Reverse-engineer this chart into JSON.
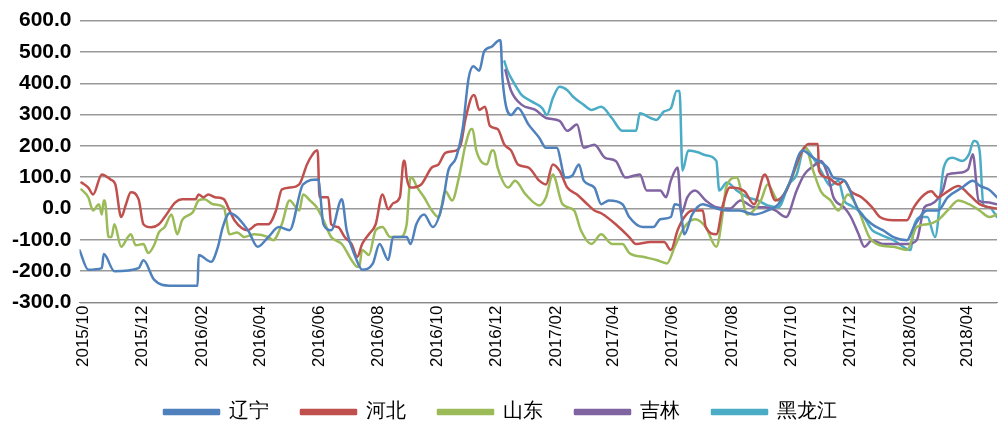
{
  "chart_data": {
    "type": "line",
    "legend": "bottom",
    "grid": "y",
    "marker": "none",
    "line_style": "solid",
    "xlim": [
      "2015-09-27",
      "2018-05-02"
    ],
    "xticks": [
      {
        "value": "2015-10",
        "label": "2015/10"
      },
      {
        "value": "2015-12",
        "label": "2015/12"
      },
      {
        "value": "2016-02",
        "label": "2016/02"
      },
      {
        "value": "2016-04",
        "label": "2016/04"
      },
      {
        "value": "2016-06",
        "label": "2016/06"
      },
      {
        "value": "2016-08",
        "label": "2016/08"
      },
      {
        "value": "2016-10",
        "label": "2016/10"
      },
      {
        "value": "2016-12",
        "label": "2016/12"
      },
      {
        "value": "2017-02",
        "label": "2017/02"
      },
      {
        "value": "2017-04",
        "label": "2017/04"
      },
      {
        "value": "2017-06",
        "label": "2017/06"
      },
      {
        "value": "2017-08",
        "label": "2017/08"
      },
      {
        "value": "2017-10",
        "label": "2017/10"
      },
      {
        "value": "2017-12",
        "label": "2017/12"
      },
      {
        "value": "2018-02",
        "label": "2018/02"
      },
      {
        "value": "2018-04",
        "label": "2018/04"
      }
    ],
    "ylim": [
      -300,
      600
    ],
    "yticks": [
      {
        "value": -300,
        "label": "-300.0"
      },
      {
        "value": -200,
        "label": "-200.0"
      },
      {
        "value": -100,
        "label": "-100.0"
      },
      {
        "value": 0,
        "label": "0.0"
      },
      {
        "value": 100,
        "label": "100.0"
      },
      {
        "value": 200,
        "label": "200.0"
      },
      {
        "value": 300,
        "label": "300.0"
      },
      {
        "value": 400,
        "label": "400.0"
      },
      {
        "value": 500,
        "label": "500.0"
      },
      {
        "value": 600,
        "label": "600.0"
      }
    ],
    "series": [
      {
        "name": "辽宁",
        "color": "#4f81bd",
        "x": [
          "2015-09-27",
          "2015-10-06",
          "2015-10-20",
          "2015-10-22",
          "2015-11-02",
          "2015-11-27",
          "2015-12-02",
          "2015-12-13",
          "2015-12-29",
          "2016-01-27",
          "2016-01-28",
          "2016-02-10",
          "2016-02-17",
          "2016-02-22",
          "2016-02-29",
          "2016-03-19",
          "2016-03-29",
          "2016-04-09",
          "2016-04-20",
          "2016-05-01",
          "2016-05-15",
          "2016-05-31",
          "2016-06-02",
          "2016-06-05",
          "2016-06-13",
          "2016-06-24",
          "2016-06-29",
          "2016-07-08",
          "2016-07-15",
          "2016-07-26",
          "2016-08-02",
          "2016-08-11",
          "2016-08-16",
          "2016-08-30",
          "2016-09-03",
          "2016-09-09",
          "2016-09-17",
          "2016-09-26",
          "2016-10-06",
          "2016-10-12",
          "2016-10-20",
          "2016-10-27",
          "2016-11-02",
          "2016-11-07",
          "2016-11-13",
          "2016-11-18",
          "2016-11-26",
          "2016-12-04",
          "2016-12-05",
          "2016-12-07",
          "2016-12-16",
          "2016-12-23",
          "2017-01-03",
          "2017-01-14",
          "2017-01-21",
          "2017-02-01",
          "2017-02-10",
          "2017-02-17",
          "2017-02-24",
          "2017-03-01",
          "2017-03-12",
          "2017-03-19",
          "2017-03-27",
          "2017-04-10",
          "2017-04-17",
          "2017-05-01",
          "2017-05-12",
          "2017-05-19",
          "2017-05-30",
          "2017-06-03",
          "2017-06-08",
          "2017-06-13",
          "2017-06-21",
          "2017-07-02",
          "2017-07-12",
          "2017-07-27",
          "2017-08-09",
          "2017-08-24",
          "2017-09-07",
          "2017-09-18",
          "2017-09-29",
          "2017-10-13",
          "2017-10-24",
          "2017-11-08",
          "2017-11-14",
          "2017-11-25",
          "2017-12-10",
          "2017-12-24",
          "2018-01-04",
          "2018-01-15",
          "2018-01-29",
          "2018-02-05",
          "2018-02-19",
          "2018-03-02",
          "2018-03-12",
          "2018-03-27",
          "2018-04-07",
          "2018-04-14",
          "2018-04-24",
          "2018-05-02"
        ],
        "values": [
          -133,
          -195,
          -190,
          -145,
          -200,
          -190,
          -165,
          -227,
          -246,
          -246,
          -148,
          -170,
          -122,
          -59,
          -15,
          -69,
          -122,
          -91,
          -59,
          -69,
          77,
          93,
          36,
          -50,
          -69,
          30,
          -69,
          -154,
          -195,
          -176,
          -113,
          -164,
          -91,
          -91,
          -113,
          -50,
          -19,
          -59,
          14,
          121,
          162,
          258,
          416,
          454,
          440,
          501,
          517,
          537,
          537,
          416,
          299,
          321,
          268,
          226,
          194,
          194,
          99,
          105,
          141,
          89,
          67,
          14,
          26,
          14,
          -27,
          -59,
          -59,
          -34,
          -27,
          14,
          10,
          -82,
          -19,
          14,
          4,
          -6,
          -6,
          -19,
          -6,
          14,
          77,
          185,
          162,
          131,
          99,
          90,
          -6,
          -50,
          -69,
          -91,
          -101,
          -59,
          -6,
          -6,
          36,
          67,
          89,
          73,
          60,
          36
        ]
      },
      {
        "name": "河北",
        "color": "#c0504d",
        "x": [
          "2015-09-29",
          "2015-10-06",
          "2015-10-11",
          "2015-10-20",
          "2015-10-29",
          "2015-11-03",
          "2015-11-09",
          "2015-11-14",
          "2015-11-19",
          "2015-11-27",
          "2015-12-02",
          "2015-12-10",
          "2015-12-18",
          "2015-12-24",
          "2016-01-04",
          "2016-01-11",
          "2016-01-25",
          "2016-01-28",
          "2016-02-02",
          "2016-02-07",
          "2016-02-14",
          "2016-02-23",
          "2016-02-29",
          "2016-03-05",
          "2016-03-19",
          "2016-03-29",
          "2016-04-09",
          "2016-04-17",
          "2016-04-23",
          "2016-05-01",
          "2016-05-11",
          "2016-05-19",
          "2016-05-24",
          "2016-05-29",
          "2016-05-30",
          "2016-06-01",
          "2016-06-10",
          "2016-06-13",
          "2016-06-20",
          "2016-06-27",
          "2016-07-04",
          "2016-07-10",
          "2016-07-15",
          "2016-07-22",
          "2016-07-29",
          "2016-08-05",
          "2016-08-11",
          "2016-08-16",
          "2016-08-23",
          "2016-08-27",
          "2016-08-28",
          "2016-08-30",
          "2016-09-03",
          "2016-09-14",
          "2016-09-25",
          "2016-10-02",
          "2016-10-09",
          "2016-10-20",
          "2016-10-25",
          "2016-10-30",
          "2016-11-07",
          "2016-11-08",
          "2016-11-13",
          "2016-11-19",
          "2016-11-24",
          "2016-12-02",
          "2016-12-09",
          "2016-12-16",
          "2016-12-23",
          "2017-01-03",
          "2017-01-14",
          "2017-01-21",
          "2017-01-28",
          "2017-02-04",
          "2017-02-12",
          "2017-02-22",
          "2017-03-06",
          "2017-03-12",
          "2017-03-19",
          "2017-04-03",
          "2017-04-17",
          "2017-04-24",
          "2017-05-09",
          "2017-05-23",
          "2017-05-30",
          "2017-06-06",
          "2017-06-13",
          "2017-06-21",
          "2017-07-02",
          "2017-07-05",
          "2017-07-16",
          "2017-07-23",
          "2017-07-30",
          "2017-08-14",
          "2017-08-24",
          "2017-09-04",
          "2017-09-15",
          "2017-09-26",
          "2017-10-11",
          "2017-10-19",
          "2017-10-29",
          "2017-10-30",
          "2017-11-08",
          "2017-11-19",
          "2017-11-25",
          "2017-12-02",
          "2017-12-13",
          "2017-12-24",
          "2018-01-01",
          "2018-01-15",
          "2018-01-29",
          "2018-02-05",
          "2018-02-16",
          "2018-02-23",
          "2018-03-02",
          "2018-03-12",
          "2018-03-23",
          "2018-04-03",
          "2018-04-14",
          "2018-04-24",
          "2018-05-02"
        ],
        "values": [
          83,
          67,
          45,
          109,
          93,
          77,
          -27,
          14,
          52,
          30,
          -50,
          -60,
          -50,
          -27,
          20,
          30,
          30,
          45,
          36,
          45,
          36,
          30,
          -6,
          -37,
          -69,
          -50,
          -50,
          -6,
          61,
          67,
          77,
          141,
          169,
          185,
          185,
          36,
          36,
          -50,
          -59,
          -91,
          -113,
          -154,
          -113,
          -82,
          -50,
          45,
          -2,
          17,
          36,
          153,
          153,
          99,
          67,
          77,
          131,
          141,
          178,
          185,
          206,
          289,
          362,
          362,
          315,
          325,
          264,
          254,
          204,
          185,
          141,
          131,
          89,
          77,
          141,
          121,
          67,
          45,
          10,
          -6,
          -15,
          -50,
          -91,
          -113,
          -107,
          -107,
          -132,
          -69,
          -27,
          -6,
          -6,
          -59,
          -82,
          14,
          67,
          55,
          14,
          109,
          26,
          55,
          173,
          206,
          206,
          121,
          99,
          77,
          89,
          55,
          36,
          4,
          -27,
          -37,
          -37,
          4,
          45,
          55,
          36,
          55,
          72,
          45,
          14,
          4,
          0
        ]
      },
      {
        "name": "山东",
        "color": "#9bbb59",
        "x": [
          "2015-09-29",
          "2015-10-06",
          "2015-10-11",
          "2015-10-17",
          "2015-10-20",
          "2015-10-22",
          "2015-10-23",
          "2015-10-27",
          "2015-10-30",
          "2015-11-02",
          "2015-11-09",
          "2015-11-16",
          "2015-11-19",
          "2015-11-24",
          "2015-12-02",
          "2015-12-07",
          "2015-12-13",
          "2015-12-18",
          "2015-12-24",
          "2015-12-31",
          "2016-01-06",
          "2016-01-11",
          "2016-01-22",
          "2016-01-28",
          "2016-02-03",
          "2016-02-12",
          "2016-02-23",
          "2016-02-29",
          "2016-03-08",
          "2016-03-15",
          "2016-03-26",
          "2016-04-09",
          "2016-04-14",
          "2016-04-23",
          "2016-05-01",
          "2016-05-11",
          "2016-05-15",
          "2016-05-22",
          "2016-05-29",
          "2016-06-05",
          "2016-06-13",
          "2016-06-24",
          "2016-07-04",
          "2016-07-10",
          "2016-07-12",
          "2016-07-15",
          "2016-07-22",
          "2016-07-29",
          "2016-08-05",
          "2016-08-13",
          "2016-08-23",
          "2016-08-30",
          "2016-09-03",
          "2016-09-04",
          "2016-09-10",
          "2016-09-17",
          "2016-09-25",
          "2016-10-02",
          "2016-10-09",
          "2016-10-16",
          "2016-10-23",
          "2016-10-30",
          "2016-11-05",
          "2016-11-06",
          "2016-11-10",
          "2016-11-21",
          "2016-11-26",
          "2016-11-28",
          "2016-12-02",
          "2016-12-13",
          "2016-12-20",
          "2016-12-31",
          "2017-01-14",
          "2017-01-21",
          "2017-01-28",
          "2017-02-07",
          "2017-02-19",
          "2017-02-26",
          "2017-03-09",
          "2017-03-19",
          "2017-03-30",
          "2017-04-10",
          "2017-04-17",
          "2017-05-01",
          "2017-05-15",
          "2017-05-26",
          "2017-06-03",
          "2017-06-13",
          "2017-06-24",
          "2017-07-05",
          "2017-07-16",
          "2017-07-23",
          "2017-07-26",
          "2017-08-06",
          "2017-08-17",
          "2017-08-31",
          "2017-09-07",
          "2017-09-18",
          "2017-09-29",
          "2017-10-10",
          "2017-10-15",
          "2017-10-16",
          "2017-10-24",
          "2017-11-01",
          "2017-11-11",
          "2017-11-19",
          "2017-11-29",
          "2017-12-10",
          "2017-12-21",
          "2018-01-01",
          "2018-01-15",
          "2018-01-29",
          "2018-02-08",
          "2018-02-19",
          "2018-03-02",
          "2018-03-12",
          "2018-03-23",
          "2018-04-03",
          "2018-04-14",
          "2018-04-24",
          "2018-05-02"
        ],
        "values": [
          61,
          36,
          -6,
          14,
          -19,
          26,
          26,
          -91,
          -91,
          -50,
          -122,
          -91,
          -82,
          -117,
          -113,
          -142,
          -117,
          -76,
          -59,
          -19,
          -82,
          -37,
          -12,
          26,
          30,
          14,
          4,
          -82,
          -76,
          -91,
          -82,
          -91,
          -101,
          -50,
          26,
          -6,
          45,
          26,
          4,
          -37,
          -91,
          -113,
          -164,
          -186,
          -186,
          -132,
          -148,
          -69,
          -59,
          -91,
          -91,
          -50,
          99,
          99,
          67,
          36,
          -6,
          -27,
          55,
          26,
          99,
          206,
          254,
          254,
          185,
          141,
          185,
          185,
          131,
          67,
          89,
          45,
          10,
          36,
          109,
          14,
          -6,
          -69,
          -113,
          -82,
          -113,
          -113,
          -142,
          -154,
          -164,
          -175,
          -122,
          -59,
          -34,
          -59,
          -122,
          -6,
          67,
          99,
          -19,
          26,
          77,
          26,
          77,
          162,
          196,
          196,
          121,
          55,
          26,
          -6,
          45,
          -6,
          -91,
          -117,
          -122,
          -132,
          -59,
          -50,
          -37,
          -6,
          26,
          14,
          -6,
          -27,
          -19
        ]
      },
      {
        "name": "吉林",
        "color": "#8064a2",
        "x": [
          "2016-12-10",
          "2016-12-16",
          "2016-12-27",
          "2017-01-10",
          "2017-01-21",
          "2017-02-04",
          "2017-02-12",
          "2017-02-22",
          "2017-03-01",
          "2017-03-12",
          "2017-03-23",
          "2017-04-03",
          "2017-04-13",
          "2017-04-28",
          "2017-05-05",
          "2017-05-19",
          "2017-05-25",
          "2017-05-30",
          "2017-06-06",
          "2017-06-10",
          "2017-06-16",
          "2017-06-24",
          "2017-07-05",
          "2017-07-16",
          "2017-07-30",
          "2017-08-10",
          "2017-08-24",
          "2017-09-04",
          "2017-09-15",
          "2017-09-26",
          "2017-10-07",
          "2017-10-15",
          "2017-10-24",
          "2017-11-01",
          "2017-11-08",
          "2017-11-14",
          "2017-11-25",
          "2017-12-02",
          "2017-12-10",
          "2017-12-16",
          "2017-12-24",
          "2018-01-04",
          "2018-01-15",
          "2018-01-29",
          "2018-02-08",
          "2018-02-16",
          "2018-02-23",
          "2018-03-07",
          "2018-03-12",
          "2018-03-23",
          "2018-04-02",
          "2018-04-07",
          "2018-04-13",
          "2018-04-21",
          "2018-05-02"
        ],
        "values": [
          442,
          375,
          331,
          315,
          289,
          280,
          248,
          268,
          194,
          204,
          162,
          152,
          99,
          109,
          58,
          58,
          36,
          89,
          131,
          -15,
          36,
          58,
          26,
          4,
          0,
          26,
          4,
          4,
          -6,
          -27,
          58,
          109,
          135,
          152,
          109,
          36,
          4,
          -27,
          -82,
          -122,
          -101,
          -113,
          -113,
          -113,
          -101,
          4,
          14,
          58,
          109,
          114,
          125,
          173,
          26,
          20,
          14
        ]
      },
      {
        "name": "黑龙江",
        "color": "#4bacc6",
        "x": [
          "2016-12-09",
          "2016-12-12",
          "2016-12-20",
          "2016-12-27",
          "2017-01-06",
          "2017-01-17",
          "2017-01-22",
          "2017-01-28",
          "2017-02-04",
          "2017-02-12",
          "2017-02-18",
          "2017-03-01",
          "2017-03-09",
          "2017-03-19",
          "2017-03-30",
          "2017-04-10",
          "2017-04-24",
          "2017-04-28",
          "2017-05-09",
          "2017-05-15",
          "2017-05-23",
          "2017-05-30",
          "2017-06-05",
          "2017-06-08",
          "2017-06-11",
          "2017-06-17",
          "2017-06-27",
          "2017-07-05",
          "2017-07-16",
          "2017-07-19",
          "2017-07-27",
          "2017-08-06",
          "2017-08-17",
          "2017-08-28",
          "2017-09-07",
          "2017-09-18",
          "2017-09-29",
          "2017-10-07",
          "2017-10-15",
          "2017-10-24",
          "2017-11-01",
          "2017-11-11",
          "2017-11-19",
          "2017-11-25",
          "2017-12-02",
          "2017-12-13",
          "2017-12-24",
          "2018-01-01",
          "2018-01-15",
          "2018-02-02",
          "2018-02-05",
          "2018-02-13",
          "2018-02-19",
          "2018-02-27",
          "2018-03-08",
          "2018-03-17",
          "2018-03-27",
          "2018-04-03",
          "2018-04-08",
          "2018-04-09",
          "2018-04-14",
          "2018-04-18",
          "2018-04-24",
          "2018-05-02"
        ],
        "values": [
          470,
          442,
          395,
          362,
          342,
          321,
          299,
          352,
          389,
          378,
          357,
          331,
          315,
          325,
          289,
          248,
          248,
          304,
          289,
          283,
          310,
          320,
          375,
          375,
          121,
          185,
          180,
          170,
          152,
          58,
          83,
          58,
          36,
          26,
          10,
          4,
          77,
          109,
          194,
          162,
          121,
          73,
          89,
          26,
          10,
          -15,
          -69,
          -82,
          -101,
          -132,
          -59,
          -27,
          -27,
          -91,
          131,
          162,
          152,
          173,
          216,
          216,
          185,
          10,
          4,
          -27
        ]
      }
    ]
  }
}
